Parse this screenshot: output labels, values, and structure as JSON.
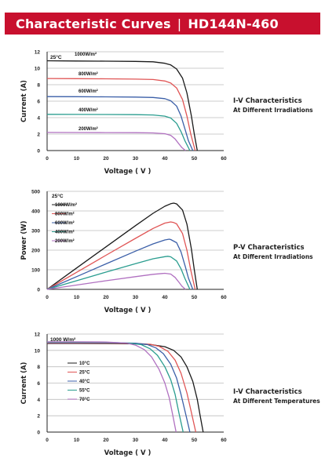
{
  "header": {
    "title": "Characteristic Curves",
    "model": "HD144N-460",
    "background": "#c8102e"
  },
  "side_labels": [
    {
      "line1": "I-V  Characteristics",
      "line2": "At Different Irradiations"
    },
    {
      "line1": "P-V  Characteristics",
      "line2": "At Different Irradiations"
    },
    {
      "line1": "I-V  Characteristics",
      "line2": "At Different Temperatures"
    }
  ],
  "chart_data": [
    {
      "type": "line",
      "xlabel": "Voltage ( V )",
      "ylabel": "Current (A)",
      "xlim": [
        0,
        60
      ],
      "ylim": [
        0,
        12
      ],
      "xticks": [
        0,
        10,
        20,
        30,
        40,
        50,
        60
      ],
      "yticks": [
        0,
        2,
        4,
        6,
        8,
        10,
        12
      ],
      "grid": true,
      "annotation": "25°C",
      "legend_placement": "inline-above-curves",
      "series": [
        {
          "name": "1000W/m²",
          "color": "#1a1a1a",
          "points": [
            [
              0,
              10.9
            ],
            [
              10,
              10.88
            ],
            [
              20,
              10.86
            ],
            [
              30,
              10.83
            ],
            [
              36,
              10.78
            ],
            [
              40,
              10.6
            ],
            [
              42,
              10.4
            ],
            [
              44,
              9.9
            ],
            [
              46,
              8.8
            ],
            [
              47.5,
              7
            ],
            [
              49,
              4.2
            ],
            [
              50,
              2
            ],
            [
              51,
              0
            ]
          ]
        },
        {
          "name": "800W/m²",
          "color": "#e05555",
          "points": [
            [
              0,
              8.75
            ],
            [
              10,
              8.73
            ],
            [
              20,
              8.71
            ],
            [
              30,
              8.68
            ],
            [
              36,
              8.63
            ],
            [
              40,
              8.45
            ],
            [
              42,
              8.2
            ],
            [
              44,
              7.6
            ],
            [
              46,
              6.2
            ],
            [
              47.5,
              4.2
            ],
            [
              48.8,
              2
            ],
            [
              50.3,
              0
            ]
          ]
        },
        {
          "name": "600W/m²",
          "color": "#3b5fa8",
          "points": [
            [
              0,
              6.55
            ],
            [
              10,
              6.54
            ],
            [
              20,
              6.52
            ],
            [
              30,
              6.5
            ],
            [
              36,
              6.45
            ],
            [
              40,
              6.3
            ],
            [
              42,
              6.05
            ],
            [
              44,
              5.4
            ],
            [
              45.5,
              4.2
            ],
            [
              47,
              2.4
            ],
            [
              48,
              1.2
            ],
            [
              49.5,
              0
            ]
          ]
        },
        {
          "name": "400W/m²",
          "color": "#2a9d8f",
          "points": [
            [
              0,
              4.4
            ],
            [
              10,
              4.39
            ],
            [
              20,
              4.38
            ],
            [
              30,
              4.36
            ],
            [
              36,
              4.32
            ],
            [
              40,
              4.18
            ],
            [
              42,
              3.95
            ],
            [
              44,
              3.3
            ],
            [
              45.5,
              2.3
            ],
            [
              46.8,
              1.2
            ],
            [
              48.5,
              0
            ]
          ]
        },
        {
          "name": "200W/m²",
          "color": "#b070c0",
          "points": [
            [
              0,
              2.2
            ],
            [
              10,
              2.19
            ],
            [
              20,
              2.18
            ],
            [
              30,
              2.17
            ],
            [
              36,
              2.14
            ],
            [
              40,
              2.05
            ],
            [
              42,
              1.85
            ],
            [
              43.5,
              1.4
            ],
            [
              44.8,
              0.8
            ],
            [
              45.8,
              0.35
            ],
            [
              47,
              0
            ]
          ]
        }
      ]
    },
    {
      "type": "line",
      "xlabel": "Voltage ( V )",
      "ylabel": "Power (W)",
      "xlim": [
        0,
        60
      ],
      "ylim": [
        0,
        500
      ],
      "xticks": [
        0,
        10,
        20,
        30,
        40,
        50,
        60
      ],
      "yticks": [
        0,
        100,
        200,
        300,
        400,
        500
      ],
      "grid": true,
      "annotation": "25°C",
      "legend_placement": "top-left",
      "series": [
        {
          "name": "1000W/m²",
          "color": "#1a1a1a",
          "points": [
            [
              0,
              0
            ],
            [
              10,
              109
            ],
            [
              20,
              217
            ],
            [
              30,
              325
            ],
            [
              36,
              388
            ],
            [
              40,
              424
            ],
            [
              42,
              437
            ],
            [
              43,
              440
            ],
            [
              44,
              436
            ],
            [
              46,
              405
            ],
            [
              47.5,
              333
            ],
            [
              49,
              206
            ],
            [
              50,
              100
            ],
            [
              51,
              0
            ]
          ]
        },
        {
          "name": "800W/m²",
          "color": "#e05555",
          "points": [
            [
              0,
              0
            ],
            [
              10,
              87
            ],
            [
              20,
              174
            ],
            [
              30,
              260
            ],
            [
              36,
              311
            ],
            [
              40,
              338
            ],
            [
              42,
              344
            ],
            [
              43,
              341
            ],
            [
              44,
              334
            ],
            [
              46,
              285
            ],
            [
              47.5,
              200
            ],
            [
              48.8,
              98
            ],
            [
              50.3,
              0
            ]
          ]
        },
        {
          "name": "600W/m²",
          "color": "#3b5fa8",
          "points": [
            [
              0,
              0
            ],
            [
              10,
              65
            ],
            [
              20,
              130
            ],
            [
              30,
              195
            ],
            [
              36,
              232
            ],
            [
              40,
              252
            ],
            [
              41.5,
              256
            ],
            [
              42,
              254
            ],
            [
              44,
              238
            ],
            [
              45.5,
              191
            ],
            [
              47,
              113
            ],
            [
              48,
              58
            ],
            [
              49.5,
              0
            ]
          ]
        },
        {
          "name": "400W/m²",
          "color": "#2a9d8f",
          "points": [
            [
              0,
              0
            ],
            [
              10,
              44
            ],
            [
              20,
              88
            ],
            [
              30,
              131
            ],
            [
              36,
              156
            ],
            [
              40,
              167
            ],
            [
              41,
              169
            ],
            [
              42,
              166
            ],
            [
              44,
              145
            ],
            [
              45.5,
              105
            ],
            [
              46.8,
              56
            ],
            [
              48.5,
              0
            ]
          ]
        },
        {
          "name": "200W/m²",
          "color": "#b070c0",
          "points": [
            [
              0,
              0
            ],
            [
              10,
              22
            ],
            [
              20,
              44
            ],
            [
              30,
              65
            ],
            [
              36,
              77
            ],
            [
              39,
              81
            ],
            [
              40,
              82
            ],
            [
              42,
              78
            ],
            [
              43.5,
              61
            ],
            [
              44.8,
              36
            ],
            [
              45.8,
              16
            ],
            [
              47,
              0
            ]
          ]
        }
      ]
    },
    {
      "type": "line",
      "xlabel": "Voltage ( V )",
      "ylabel": "Current (A)",
      "xlim": [
        0,
        60
      ],
      "ylim": [
        0,
        12
      ],
      "xticks": [
        0,
        10,
        20,
        30,
        40,
        50,
        60
      ],
      "yticks": [
        0,
        2,
        4,
        6,
        8,
        10,
        12
      ],
      "grid": true,
      "annotation": "1000 W/m²",
      "legend_placement": "middle-left",
      "series": [
        {
          "name": "10°C",
          "color": "#1a1a1a",
          "points": [
            [
              0,
              10.85
            ],
            [
              10,
              10.85
            ],
            [
              20,
              10.84
            ],
            [
              30,
              10.8
            ],
            [
              35,
              10.72
            ],
            [
              40,
              10.45
            ],
            [
              43,
              10
            ],
            [
              45.5,
              9.2
            ],
            [
              47.5,
              8
            ],
            [
              49.5,
              6.2
            ],
            [
              51,
              4
            ],
            [
              52,
              2
            ],
            [
              53,
              0
            ]
          ]
        },
        {
          "name": "25°C",
          "color": "#e05555",
          "points": [
            [
              0,
              10.9
            ],
            [
              10,
              10.9
            ],
            [
              20,
              10.89
            ],
            [
              30,
              10.85
            ],
            [
              35,
              10.75
            ],
            [
              38,
              10.5
            ],
            [
              41,
              9.9
            ],
            [
              43.5,
              8.8
            ],
            [
              45.5,
              7.2
            ],
            [
              47.5,
              4.8
            ],
            [
              49,
              2.4
            ],
            [
              50.5,
              0
            ]
          ]
        },
        {
          "name": "40°C",
          "color": "#3b5fa8",
          "points": [
            [
              0,
              10.95
            ],
            [
              10,
              10.95
            ],
            [
              20,
              10.94
            ],
            [
              30,
              10.88
            ],
            [
              34,
              10.72
            ],
            [
              37,
              10.3
            ],
            [
              39.5,
              9.6
            ],
            [
              42,
              8.3
            ],
            [
              44,
              6.6
            ],
            [
              45.5,
              4.6
            ],
            [
              47,
              2.3
            ],
            [
              48.5,
              0
            ]
          ]
        },
        {
          "name": "55°C",
          "color": "#2a9d8f",
          "points": [
            [
              0,
              11
            ],
            [
              10,
              11
            ],
            [
              20,
              10.99
            ],
            [
              28,
              10.9
            ],
            [
              32,
              10.7
            ],
            [
              35,
              10.2
            ],
            [
              37.5,
              9.4
            ],
            [
              40,
              8
            ],
            [
              42,
              6.4
            ],
            [
              43.5,
              4.6
            ],
            [
              44.8,
              2.3
            ],
            [
              46.2,
              0
            ]
          ]
        },
        {
          "name": "70°C",
          "color": "#b070c0",
          "points": [
            [
              0,
              11.05
            ],
            [
              10,
              11.05
            ],
            [
              20,
              11.03
            ],
            [
              27,
              10.9
            ],
            [
              30,
              10.65
            ],
            [
              33,
              10.1
            ],
            [
              35.5,
              9.2
            ],
            [
              38,
              7.7
            ],
            [
              40,
              6
            ],
            [
              41.5,
              4.2
            ],
            [
              42.6,
              2.2
            ],
            [
              43.8,
              0
            ]
          ]
        }
      ]
    }
  ]
}
